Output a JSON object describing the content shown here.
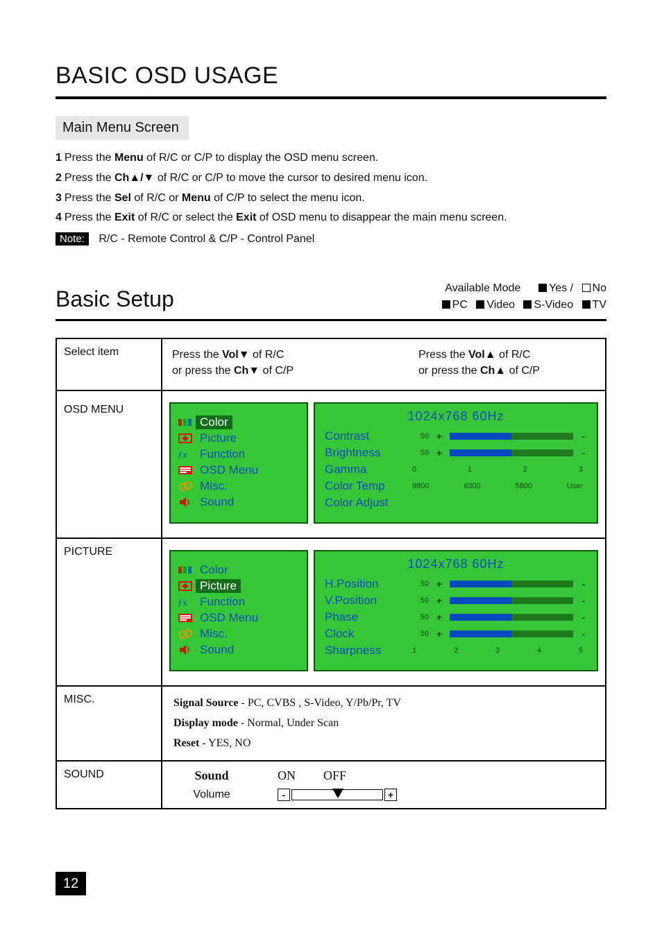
{
  "title": "BASIC OSD USAGE",
  "main_menu_header": "Main Menu Screen",
  "steps": {
    "s1_pre": "Press the ",
    "s1_b": "Menu",
    "s1_post": " of R/C or C/P to display the OSD menu screen.",
    "s2_pre": "Press the ",
    "s2_b": "Ch▲/▼",
    "s2_post": " of R/C or C/P to move the cursor to desired menu icon.",
    "s3_pre": "Press the ",
    "s3_b1": "Sel",
    "s3_mid": " of R/C or  ",
    "s3_b2": "Menu",
    "s3_post": " of C/P to select the menu icon.",
    "s4_pre": "Press the ",
    "s4_b1": "Exit",
    "s4_mid": " of R/C or select the ",
    "s4_b2": "Exit",
    "s4_post": " of OSD menu to disappear the main menu screen."
  },
  "note_label": "Note:",
  "note_text": "R/C - Remote Control & C/P - Control Panel",
  "basic_setup": "Basic Setup",
  "avail": {
    "label": "Available Mode",
    "yes": "Yes /",
    "no": "No",
    "pc": "PC",
    "video": "Video",
    "svideo": "S-Video",
    "tv": "TV"
  },
  "row_labels": {
    "select_item": "Select item",
    "osd_menu": "OSD MENU",
    "picture": "PICTURE",
    "misc": "MISC.",
    "sound": "SOUND"
  },
  "press": {
    "left1": "Press the ",
    "left_b": "Vol▼",
    "left2": " of R/C",
    "left3": "or press the ",
    "left_b2": "Ch▼",
    "left4": " of C/P",
    "right1": "Press the ",
    "right_b": "Vol▲",
    "right2": " of R/C",
    "right3": "or press the ",
    "right_b2": "Ch▲",
    "right4": " of C/P"
  },
  "menu_items": {
    "color": "Color",
    "picture": "Picture",
    "function": "Function",
    "osd_menu": "OSD Menu",
    "misc": "Misc.",
    "sound": "Sound"
  },
  "osd_mode": "1024x768   60Hz",
  "osd_color": {
    "contrast": "Contrast",
    "brightness": "Brightness",
    "gamma": "Gamma",
    "color_temp": "Color Temp",
    "color_adjust": "Color Adjust",
    "val50": "50",
    "gamma_opts": [
      "0",
      "1",
      "2",
      "3"
    ],
    "ct_opts": [
      "9800",
      "6300",
      "5800",
      "User"
    ],
    "bar_fill_pct": 50
  },
  "osd_picture": {
    "hpos": "H.Position",
    "vpos": "V.Position",
    "phase": "Phase",
    "clock": "Clock",
    "sharpness": "Sharpness",
    "val50": "50",
    "sharp_opts": [
      "1",
      "2",
      "3",
      "4",
      "5"
    ],
    "bar_fill_pct": 50
  },
  "misc_text": {
    "l1a": "Signal Source",
    "l1b": " - PC, CVBS , S-Video, Y/Pb/Pr, TV",
    "l2a": "Display mode",
    "l2b": " - Normal,  Under Scan",
    "l3a": "Reset",
    "l3b": " -  YES,  NO"
  },
  "sound_row": {
    "sound": "Sound",
    "on": "ON",
    "off": "OFF",
    "volume": "Volume"
  },
  "colors": {
    "osd_bg": "#37c637",
    "osd_border": "#0b5a0b",
    "osd_text": "#0d4ebf",
    "bar_bg": "#1f7a1f",
    "bar_fill": "#0848bf",
    "small_text": "#0b4a10"
  },
  "page_number": "12"
}
